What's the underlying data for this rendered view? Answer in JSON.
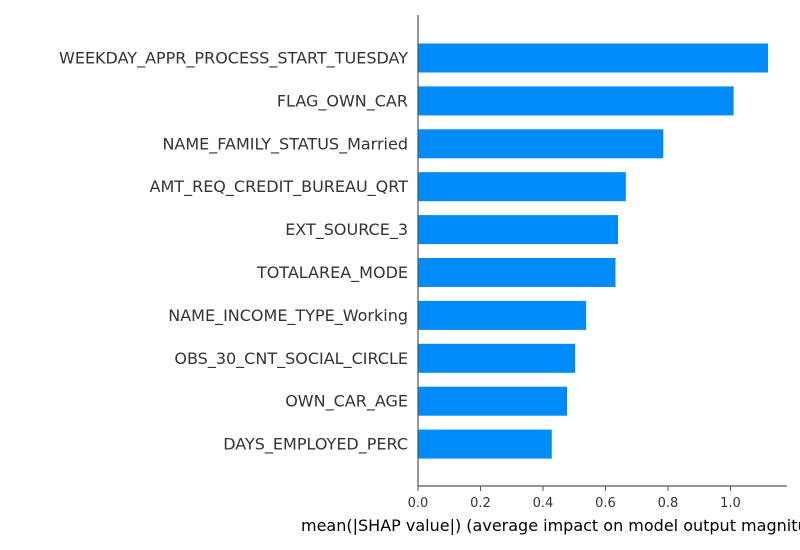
{
  "chart_data": {
    "type": "bar",
    "orientation": "horizontal",
    "categories": [
      "WEEKDAY_APPR_PROCESS_START_TUESDAY",
      "FLAG_OWN_CAR",
      "NAME_FAMILY_STATUS_Married",
      "AMT_REQ_CREDIT_BUREAU_QRT",
      "EXT_SOURCE_3",
      "TOTALAREA_MODE",
      "NAME_INCOME_TYPE_Working",
      "OBS_30_CNT_SOCIAL_CIRCLE",
      "OWN_CAR_AGE",
      "DAYS_EMPLOYED_PERC"
    ],
    "values": [
      1.12,
      1.01,
      0.785,
      0.665,
      0.64,
      0.632,
      0.538,
      0.503,
      0.477,
      0.428
    ],
    "title": "",
    "xlabel": "mean(|SHAP value|) (average impact on model output magnitude)",
    "ylabel": "",
    "xlim": [
      0,
      1.18
    ],
    "xticks": [
      "0.0",
      "0.2",
      "0.4",
      "0.6",
      "0.8",
      "1.0"
    ],
    "bar_color": "#008bfb",
    "grid": false
  }
}
